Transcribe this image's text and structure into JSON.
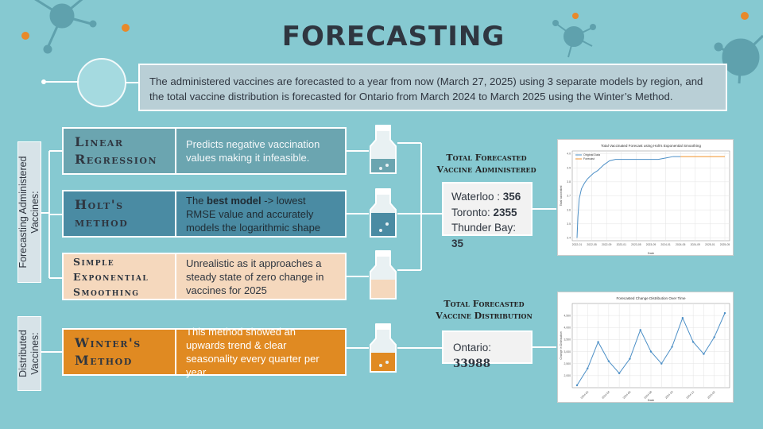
{
  "title": "FORECASTING",
  "intro": "The administered vaccines are forecasted to a year from now (March 27, 2025) using 3 separate models by region, and the total vaccine distribution is forecasted for Ontario from March 2024 to March 2025 using the Winter’s Method.",
  "side_labels": {
    "administered": "Forecasting Administered Vaccines:",
    "distributed": "Distributed Vaccines:"
  },
  "models": [
    {
      "name": "Linear Regression",
      "desc_pre": "Predicts negative vaccination values making it infeasible.",
      "desc_bold": "",
      "desc_post": ""
    },
    {
      "name": "Holt's method",
      "desc_pre": "The ",
      "desc_bold": "best model",
      "desc_post": " -> lowest RMSE value and accurately models the logarithmic shape"
    },
    {
      "name": "Simple Exponential Smoothing",
      "desc_pre": "Unrealistic as it approaches a steady state of zero change in vaccines for 2025",
      "desc_bold": "",
      "desc_post": ""
    },
    {
      "name": "Winter's Method",
      "desc_pre": "This method showed an upwards trend & clear seasonality every quarter per year",
      "desc_bold": "",
      "desc_post": ""
    }
  ],
  "administered": {
    "heading": "Total Forecasted Vaccine Administered",
    "rows": [
      {
        "label": "Waterloo : ",
        "value": "356"
      },
      {
        "label": "Toronto: ",
        "value": "2355"
      },
      {
        "label": "Thunder Bay: ",
        "value": "35"
      }
    ]
  },
  "distribution": {
    "heading": "Total Forecasted Vaccine Distribution",
    "label": "Ontario: ",
    "value": "33988"
  },
  "colors": {
    "background": "#86c9d1",
    "linear": "#6ba5b0",
    "holt": "#4a8ba3",
    "ses": "#f5d8bd",
    "winter": "#e08a22",
    "accent_dot": "#e8892a"
  },
  "chart_data": [
    {
      "type": "line",
      "title": "Total Vaccinated Forecast using Holt's Exponential Smoothing",
      "xlabel": "Date",
      "ylabel": "Total vaccinated",
      "x": [
        "2022-01",
        "2022-05",
        "2022-09",
        "2023-01",
        "2023-05",
        "2023-09",
        "2024-01",
        "2024-05",
        "2024-09",
        "2025-01",
        "2025-05"
      ],
      "yticks": [
        "3.4",
        "3.5",
        "3.6",
        "3.7",
        "3.8",
        "3.9",
        "4.0"
      ],
      "ylim": [
        3.38,
        4.02
      ],
      "series": [
        {
          "name": "Original Data",
          "color": "#4c8fc6",
          "x": [
            0,
            0.06,
            0.15,
            0.3,
            0.5,
            0.7,
            0.9,
            1.1,
            1.4,
            1.8,
            2.2,
            2.6,
            3.0,
            3.6,
            4.5,
            5.5,
            6.0,
            6.5,
            7.0
          ],
          "y": [
            3.4,
            3.55,
            3.68,
            3.75,
            3.79,
            3.82,
            3.84,
            3.86,
            3.88,
            3.92,
            3.95,
            3.96,
            3.96,
            3.96,
            3.96,
            3.96,
            3.97,
            3.98,
            3.98
          ]
        },
        {
          "name": "Forecast",
          "color": "#f0922b",
          "x": [
            7.0,
            8.0,
            9.0,
            10.0
          ],
          "y": [
            3.98,
            3.98,
            3.98,
            3.98
          ]
        }
      ],
      "legend": "top-left",
      "grid": true
    },
    {
      "type": "line",
      "title": "Forecasted Change Distribution Over Time",
      "xlabel": "Date",
      "ylabel": "Change in Distribution",
      "x": [
        "2024-01",
        "2024-02",
        "2024-03",
        "2024-04",
        "2024-05",
        "2024-06",
        "2024-07",
        "2024-08",
        "2024-09",
        "2024-10",
        "2024-11",
        "2024-12",
        "2025-01",
        "2025-02",
        "2025-03"
      ],
      "yticks": [
        "2,000",
        "2,500",
        "3,000",
        "3,500",
        "4,000",
        "4,500"
      ],
      "ylim": [
        1500,
        5000
      ],
      "series": [
        {
          "name": "",
          "color": "#4c8fc6",
          "values": [
            1600,
            2300,
            3400,
            2600,
            2100,
            2700,
            3900,
            3000,
            2500,
            3200,
            4400,
            3400,
            2900,
            3600,
            4600
          ]
        }
      ],
      "grid": true
    }
  ]
}
